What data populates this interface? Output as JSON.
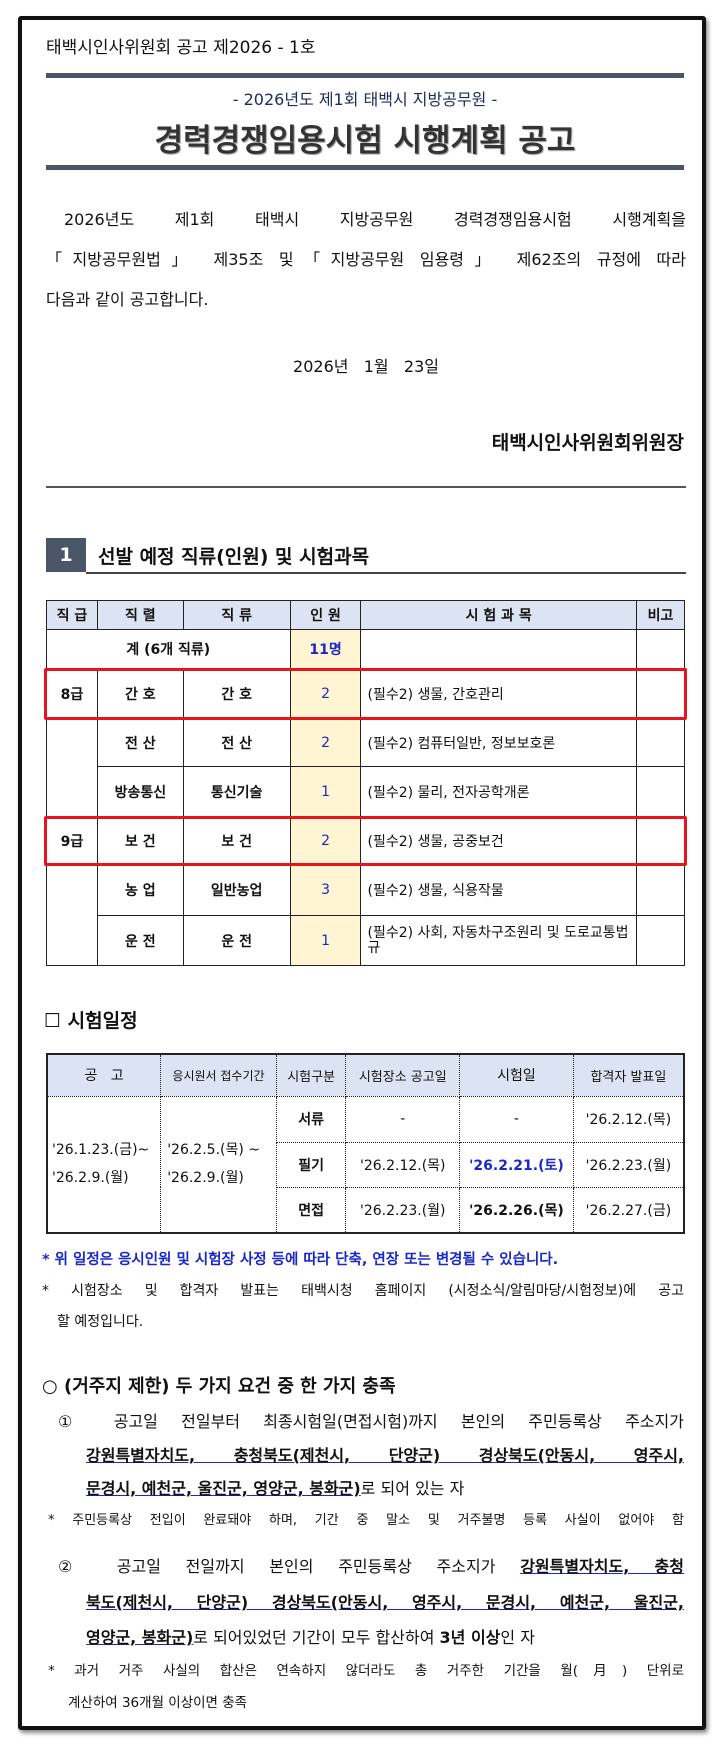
{
  "notice_number": "태백시인사위원회 공고 제2026 - 1호",
  "subtitle": "- 2026년도 제1회 태백시 지방공무원 -",
  "title": "경력경쟁임용시험 시행계획 공고",
  "body_lines": [
    "2026년도 제1회 태백시 지방공무원 경력경쟁임용시험 시행계획을",
    "「지방공무원법」 제35조 및「지방공무원 임용령」 제62조의 규정에 따라",
    "다음과 같이 공고합니다."
  ],
  "date": "2026년   1월   23일",
  "signer": "태백시인사위원회위원장",
  "section1": {
    "number": "1",
    "title": "선발 예정 직류(인원) 및 시험과목"
  },
  "positions": {
    "headers": [
      "직 급",
      "직 렬",
      "직 류",
      "인 원",
      "시 험 과 목",
      "비고"
    ],
    "total_label": "계 (6개 직류)",
    "total_count": "11명",
    "rows": [
      {
        "grade": "8급",
        "series": "간 호",
        "category": "간 호",
        "count": "2",
        "subjects": "(필수2) 생물, 간호관리"
      },
      {
        "grade": "",
        "series": "전 산",
        "category": "전 산",
        "count": "2",
        "subjects": "(필수2) 컴퓨터일반, 정보보호론"
      },
      {
        "grade": "",
        "series": "방송통신",
        "category": "통신기술",
        "count": "1",
        "subjects": "(필수2) 물리, 전자공학개론"
      },
      {
        "grade": "9급",
        "series": "보 건",
        "category": "보 건",
        "count": "2",
        "subjects": "(필수2) 생물, 공중보건"
      },
      {
        "grade": "",
        "series": "농 업",
        "category": "일반농업",
        "count": "3",
        "subjects": "(필수2) 생물, 식용작물"
      },
      {
        "grade": "",
        "series": "운 전",
        "category": "운 전",
        "count": "1",
        "subjects": "(필수2) 사회, 자동차구조원리 및 도로교통법규"
      }
    ]
  },
  "schedule": {
    "title": "☐ 시험일정",
    "headers": [
      "공   고",
      "응시원서 접수기간",
      "시험구분",
      "시험장소 공고일",
      "시험일",
      "합격자 발표일"
    ],
    "notice_period": [
      "'26.1.23.(금)~",
      "'26.2.9.(월)"
    ],
    "application_period": [
      "'26.2.5.(목) ~",
      "'26.2.9.(월)"
    ],
    "rows": [
      {
        "type": "서류",
        "venue": "-",
        "exam": "-",
        "result": "'26.2.12.(목)"
      },
      {
        "type": "필기",
        "venue": "'26.2.12.(목)",
        "exam": "'26.2.21.(토)",
        "result": "'26.2.23.(월)"
      },
      {
        "type": "면접",
        "venue": "'26.2.23.(월)",
        "exam": "'26.2.26.(목)",
        "result": "'26.2.27.(금)"
      }
    ],
    "note1": "* 위 일정은 응시인원 및 시험장 사정 등에 따라 단축, 연장 또는 변경될 수 있습니다.",
    "note2a": "* 시험장소 및 합격자 발표는 태백시청 홈페이지 (시정소식/알림마당/시험정보)에 공고",
    "note2b": "할 예정입니다."
  },
  "residence": {
    "heading": "○ (거주지 제한) 두 가지 요건 중 한 가지 충족",
    "item1_a": "① 공고일 전일부터 최종시험일(면접시험)까지 본인의 주민등록상 주소지가",
    "item1_b": "강원특별자치도, 충청북도(제천시, 단양군) 경상북도(안동시, 영주시,",
    "item1_c_ul": "문경시, 예천군, 울진군, 영양군, 봉화군)",
    "item1_c_rest": "로 되어 있는 자",
    "note1": "* 주민등록상 전입이 완료돼야 하며, 기간 중 말소 및 거주불명 등록 사실이 없어야 함",
    "item2_a": "② 공고일 전일까지 본인의 주민등록상 주소지가 ",
    "item2_a_ul": "강원특별자치도, 충청",
    "item2_b": "북도(제천시, 단양군) 경상북도(안동시, 영주시, 문경시, 예천군, 울진군,",
    "item2_c_ul": "영양군, 봉화군)",
    "item2_c_rest": "로 되어있었던 기간이 모두 합산하여 ",
    "item2_c_bold": "3년 이상",
    "item2_c_end": "인 자",
    "note2a": "* 과거 거주 사실의 합산은 연속하지 않더라도 총 거주한 기간을 월(月) 단위로",
    "note2b": "계산하여 36개월 이상이면 충족"
  },
  "colors": {
    "accent": "#4a5568",
    "highlight_box": "#e8141b",
    "blue_text": "#1a28c8",
    "header_bg": "#dce4f3",
    "count_bg": "#fff5d2"
  }
}
